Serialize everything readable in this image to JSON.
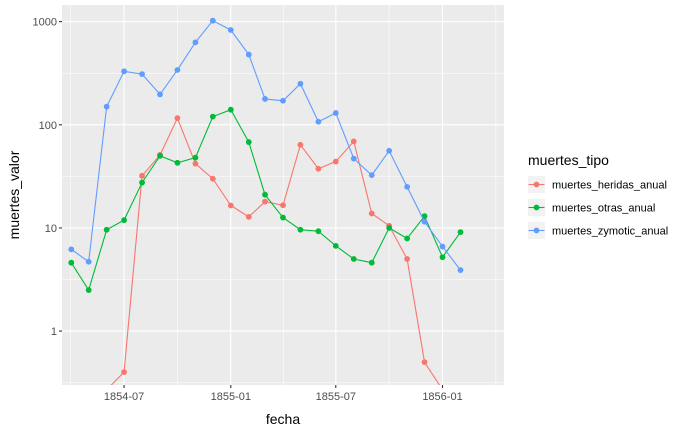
{
  "chart_data": {
    "type": "line",
    "title": "",
    "xlabel": "fecha",
    "ylabel": "muertes_valor",
    "y_scale": "log10",
    "ylim": [
      0.3,
      1450
    ],
    "xlim": [
      "1854-03-16",
      "1856-04-16"
    ],
    "grid": true,
    "panel_background": "#ebebeb",
    "grid_color": "#ffffff",
    "x_ticks": [
      {
        "date": "1854-07-01",
        "label": "1854-07"
      },
      {
        "date": "1855-01-01",
        "label": "1855-01"
      },
      {
        "date": "1855-07-01",
        "label": "1855-07"
      },
      {
        "date": "1856-01-01",
        "label": "1856-01"
      }
    ],
    "y_ticks": [
      {
        "value": 1,
        "label": "1"
      },
      {
        "value": 10,
        "label": "10"
      },
      {
        "value": 100,
        "label": "100"
      },
      {
        "value": 1000,
        "label": "1000"
      }
    ],
    "x": [
      "1854-04-01",
      "1854-05-01",
      "1854-06-01",
      "1854-07-01",
      "1854-08-01",
      "1854-09-01",
      "1854-10-01",
      "1854-11-01",
      "1854-12-01",
      "1855-01-01",
      "1855-02-01",
      "1855-03-01",
      "1855-04-01",
      "1855-05-01",
      "1855-06-01",
      "1855-07-01",
      "1855-08-01",
      "1855-09-01",
      "1855-10-01",
      "1855-11-01",
      "1855-12-01",
      "1856-01-01",
      "1856-02-01",
      "1856-03-01"
    ],
    "legend": {
      "title": "muertes_tipo",
      "position": "right"
    },
    "series": [
      {
        "name": "muertes_heridas_anual",
        "color": "#f8766d",
        "values": [
          0.28,
          0.28,
          0.27,
          0.4,
          32,
          51,
          116,
          42,
          30,
          16.5,
          12.8,
          18,
          16.6,
          64,
          37.5,
          44,
          69,
          13.8,
          10.5,
          5,
          0.5,
          0.27,
          0.27,
          0.27
        ]
      },
      {
        "name": "muertes_otras_anual",
        "color": "#00ba38",
        "values": [
          4.6,
          2.5,
          9.6,
          11.9,
          27.5,
          50,
          42.8,
          48,
          120,
          140,
          68,
          21,
          12.6,
          9.6,
          9.3,
          6.7,
          5,
          4.6,
          10,
          7.9,
          13,
          5.2,
          9.1,
          null
        ]
      },
      {
        "name": "muertes_zymotic_anual",
        "color": "#619cff",
        "values": [
          6.2,
          4.7,
          150,
          330,
          310,
          197,
          340,
          630,
          1022,
          830,
          480,
          178,
          171,
          250,
          107,
          130,
          47,
          32.5,
          56,
          25,
          11.5,
          6.6,
          3.9,
          null
        ]
      }
    ]
  }
}
